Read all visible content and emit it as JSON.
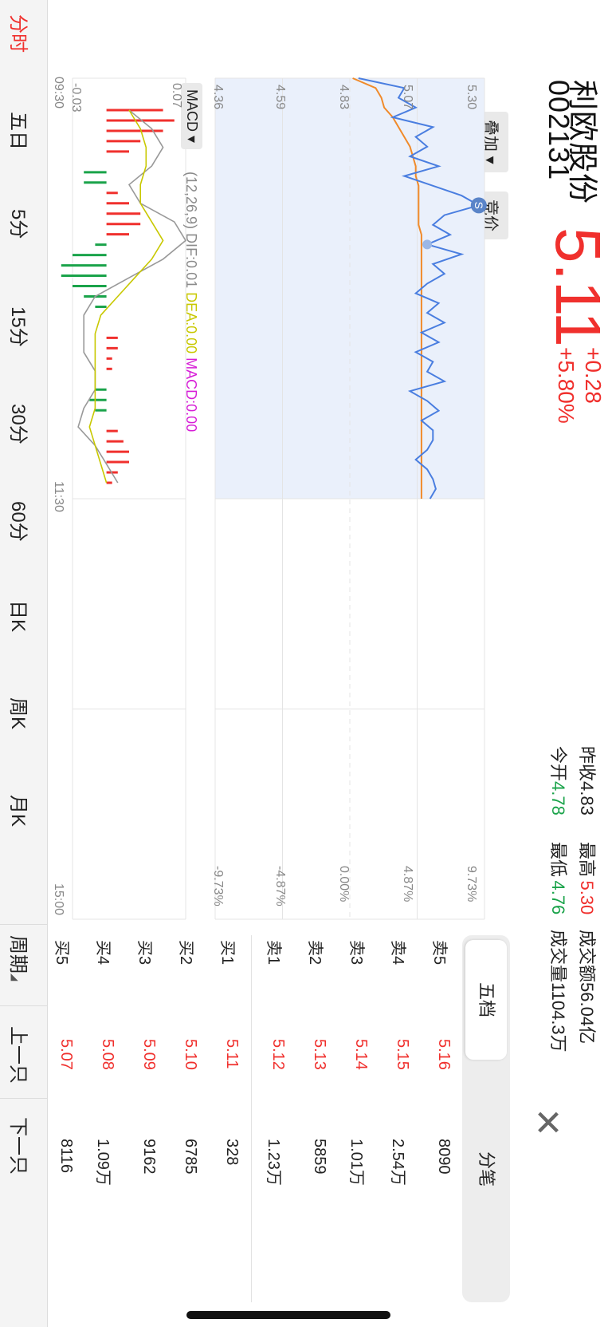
{
  "stock": {
    "name": "利欧股份",
    "code": "002131",
    "price": "5.11",
    "change": "+0.28",
    "change_pct": "+5.80%"
  },
  "stats": {
    "prev_close_label": "昨收",
    "prev_close": "4.83",
    "high_label": "最高",
    "high": "5.30",
    "turnover_label": "成交额",
    "turnover": "56.04亿",
    "open_label": "今开",
    "open": "4.78",
    "low_label": "最低",
    "low": "4.76",
    "volume_label": "成交量",
    "volume": "1104.3万"
  },
  "controls": {
    "overlay": "叠加",
    "auction": "竞价",
    "macd_select": "MACD",
    "macd_params": "(12,26,9)",
    "dif": "DIF:0.01",
    "dea": "DEA:0.00",
    "macd": "MACD:0.00",
    "marker": "S"
  },
  "axes": {
    "price_ticks": [
      "5.30",
      "5.07",
      "4.83",
      "4.59",
      "4.36"
    ],
    "pct_ticks": [
      "9.73%",
      "4.87%",
      "0.00%",
      "-4.87%",
      "-9.73%"
    ],
    "macd_ticks": [
      "0.07",
      "-0.03"
    ],
    "time_ticks": [
      "09:30",
      "11:30",
      "15:00"
    ]
  },
  "orderbook": {
    "tab_five": "五档",
    "tab_detail": "分笔",
    "rows": [
      {
        "label": "卖5",
        "price": "5.16",
        "vol": "8090"
      },
      {
        "label": "卖4",
        "price": "5.15",
        "vol": "2.54万"
      },
      {
        "label": "卖3",
        "price": "5.14",
        "vol": "1.01万"
      },
      {
        "label": "卖2",
        "price": "5.13",
        "vol": "5859"
      },
      {
        "label": "卖1",
        "price": "5.12",
        "vol": "1.23万"
      },
      {
        "label": "买1",
        "price": "5.11",
        "vol": "328"
      },
      {
        "label": "买2",
        "price": "5.10",
        "vol": "6785"
      },
      {
        "label": "买3",
        "price": "5.09",
        "vol": "9162"
      },
      {
        "label": "买4",
        "price": "5.08",
        "vol": "1.09万"
      },
      {
        "label": "买5",
        "price": "5.07",
        "vol": "8116"
      }
    ]
  },
  "tabs": [
    "分时",
    "五日",
    "5分",
    "15分",
    "30分",
    "60分",
    "日K",
    "周K",
    "月K"
  ],
  "nav": {
    "period": "周期",
    "prev": "上一只",
    "next": "下一只"
  },
  "colors": {
    "up": "#f0302d",
    "down": "#1aa34a",
    "price_line": "#4a7ee0",
    "avg_line": "#f08a2a",
    "dea_line": "#c8c800",
    "dif_line": "#999999",
    "macd_label": "#d71ed7"
  },
  "chart_data": {
    "type": "line",
    "x_range": [
      "09:30",
      "15:00"
    ],
    "ylim": [
      4.36,
      5.3
    ],
    "series": [],
    "price_points": [
      4.86,
      5.02,
      5.0,
      5.06,
      4.98,
      5.12,
      5.06,
      5.1,
      5.04,
      5.14,
      5.02,
      5.12,
      5.22,
      5.28,
      5.16,
      5.12,
      5.18,
      5.1,
      5.22,
      5.12,
      5.16,
      5.1,
      5.06,
      5.14,
      5.1,
      5.16,
      5.08,
      5.14,
      5.06,
      5.12,
      5.1,
      5.16,
      5.04,
      5.1,
      5.14,
      5.08,
      5.12,
      5.12,
      5.1,
      5.06,
      5.1,
      5.12,
      5.13,
      5.11
    ],
    "avg_points": [
      4.84,
      4.92,
      4.94,
      4.95,
      4.98,
      5.0,
      5.02,
      5.04,
      5.05,
      5.06,
      5.06,
      5.07,
      5.07,
      5.07,
      5.07,
      5.07,
      5.08,
      5.08,
      5.08,
      5.08,
      5.08,
      5.08,
      5.08,
      5.08,
      5.08,
      5.08,
      5.08,
      5.08,
      5.08,
      5.08,
      5.08,
      5.08,
      5.08,
      5.08,
      5.08,
      5.08,
      5.08,
      5.08,
      5.08,
      5.08,
      5.08,
      5.08,
      5.08,
      5.08
    ],
    "macd_bars": [
      0.05,
      0.06,
      0.05,
      0.03,
      0.02,
      0.0,
      -0.02,
      -0.02,
      0.01,
      0.02,
      0.03,
      0.03,
      0.02,
      -0.01,
      -0.03,
      -0.04,
      -0.04,
      -0.03,
      -0.02,
      -0.01,
      0.0,
      0.0,
      0.01,
      0.01,
      0.005,
      0.005,
      0.0,
      -0.01,
      -0.015,
      -0.01,
      0.0,
      0.01,
      0.015,
      0.02,
      0.02,
      0.01,
      0.005
    ],
    "dif_points": [
      0.02,
      0.04,
      0.05,
      0.04,
      0.02,
      0.03,
      0.06,
      0.07,
      0.05,
      0.02,
      -0.01,
      -0.02,
      -0.02,
      -0.02,
      -0.01,
      -0.01,
      -0.02,
      -0.025,
      -0.01,
      0.0,
      0.01
    ],
    "dea_points": [
      0.02,
      0.03,
      0.035,
      0.035,
      0.03,
      0.03,
      0.04,
      0.05,
      0.04,
      0.025,
      0.01,
      -0.005,
      -0.01,
      -0.01,
      -0.01,
      -0.01,
      -0.01,
      -0.015,
      -0.01,
      -0.005,
      0.0
    ]
  }
}
